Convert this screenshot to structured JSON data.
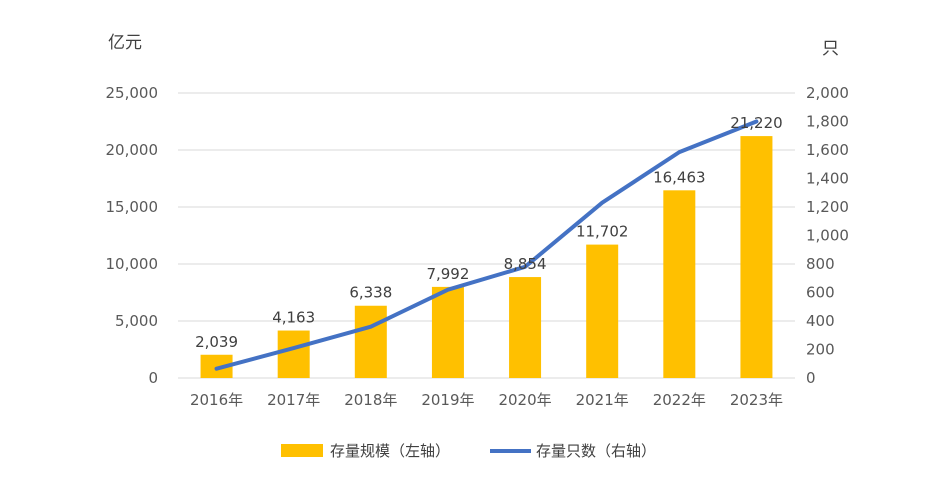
{
  "chart_data": {
    "type": "bar",
    "categories": [
      "2016年",
      "2017年",
      "2018年",
      "2019年",
      "2020年",
      "2021年",
      "2022年",
      "2023年"
    ],
    "series": [
      {
        "name": "存量规模（左轴）",
        "type": "bar",
        "axis": "left",
        "color": "#FFC000",
        "values": [
          2039,
          4163,
          6338,
          7992,
          8854,
          11702,
          16463,
          21220
        ],
        "labels": [
          "2,039",
          "4,163",
          "6,338",
          "7,992",
          "8,854",
          "11,702",
          "16,463",
          "21,220"
        ]
      },
      {
        "name": "存量只数（右轴）",
        "type": "line",
        "axis": "right",
        "color": "#4472C4",
        "values": [
          65,
          210,
          360,
          620,
          780,
          1230,
          1585,
          1800
        ]
      }
    ],
    "y_left": {
      "unit": "亿元",
      "ylim": [
        0,
        25000
      ],
      "ticks": [
        0,
        5000,
        10000,
        15000,
        20000,
        25000
      ],
      "tick_labels": [
        "0",
        "5,000",
        "10,000",
        "15,000",
        "20,000",
        "25,000"
      ]
    },
    "y_right": {
      "unit": "只",
      "ylim": [
        0,
        2000
      ],
      "ticks": [
        0,
        200,
        400,
        600,
        800,
        1000,
        1200,
        1400,
        1600,
        1800,
        2000
      ],
      "tick_labels": [
        "0",
        "200",
        "400",
        "600",
        "800",
        "1,000",
        "1,200",
        "1,400",
        "1,600",
        "1,800",
        "2,000"
      ]
    },
    "grid": true,
    "legend_position": "bottom"
  }
}
